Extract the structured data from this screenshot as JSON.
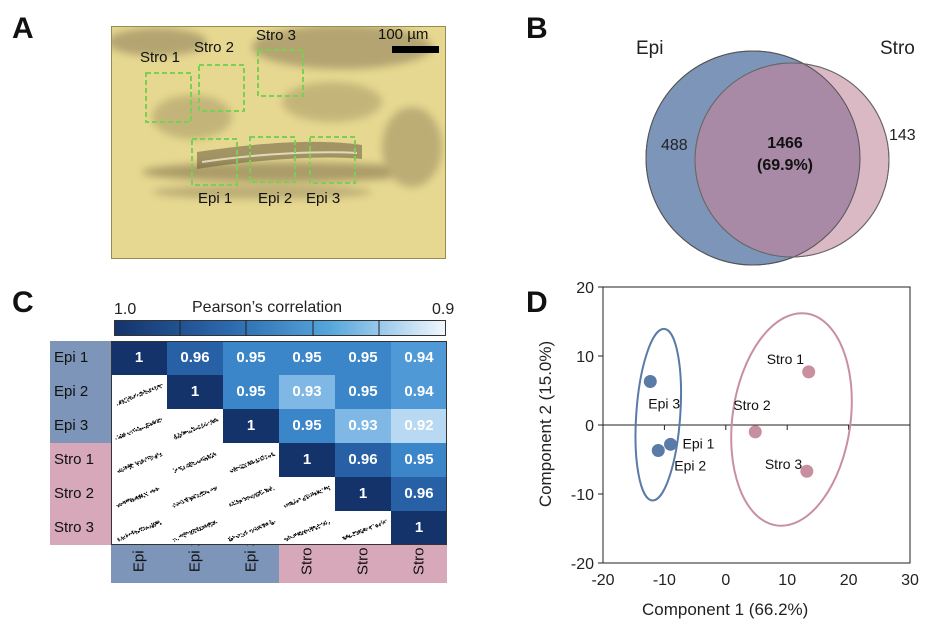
{
  "panels": {
    "a": "A",
    "b": "B",
    "c": "C",
    "d": "D"
  },
  "panel_a": {
    "scale_bar_label": "100 µm",
    "regions": [
      "Stro 1",
      "Stro 2",
      "Stro 3",
      "Epi 1",
      "Epi 2",
      "Epi 3"
    ],
    "roi_color": "#7ccf55"
  },
  "panel_b": {
    "set1_label": "Epi",
    "set2_label": "Stro",
    "set1_only": "488",
    "set2_only": "143",
    "overlap_count": "1466",
    "overlap_percent": "(69.9%)",
    "colors": {
      "epi": "#7d95b8",
      "stro": "#dab8c4",
      "overlap": "#a98aa6"
    }
  },
  "panel_c": {
    "colorbar_title": "Pearson’s correlation",
    "colorbar_max": "1.0",
    "colorbar_min": "0.9",
    "samples": [
      "Epi 1",
      "Epi 2",
      "Epi 3",
      "Stro 1",
      "Stro 2",
      "Stro 3"
    ],
    "matrix": [
      [
        "1",
        "0.96",
        "0.95",
        "0.95",
        "0.95",
        "0.94"
      ],
      [
        "",
        "1",
        "0.95",
        "0.93",
        "0.95",
        "0.94"
      ],
      [
        "",
        "",
        "1",
        "0.95",
        "0.93",
        "0.92"
      ],
      [
        "",
        "",
        "",
        "1",
        "0.96",
        "0.95"
      ],
      [
        "",
        "",
        "",
        "",
        "1",
        "0.96"
      ],
      [
        "",
        "",
        "",
        "",
        "",
        "1"
      ]
    ],
    "label_colors": {
      "epi": "#7d95b8",
      "stro": "#d6a8ba"
    }
  },
  "chart_data": {
    "type": "scatter",
    "xlabel": "Component 1 (66.2%)",
    "ylabel": "Component 2 (15.0%)",
    "xlim": [
      -20,
      30
    ],
    "ylim": [
      -20,
      20
    ],
    "xticks": [
      "-20",
      "-10",
      "0",
      "10",
      "20",
      "30"
    ],
    "yticks": [
      "20",
      "10",
      "0",
      "-10",
      "-20"
    ],
    "series": [
      {
        "color": "#5a7aa8",
        "points": [
          {
            "label": "Epi 1",
            "x": -9,
            "y": -2.8
          },
          {
            "label": "Epi 2",
            "x": -11,
            "y": -3.7
          },
          {
            "label": "Epi 3",
            "x": -12.3,
            "y": 6.3
          }
        ]
      },
      {
        "color": "#c8909f",
        "points": [
          {
            "label": "Stro 1",
            "x": 13.5,
            "y": 7.7
          },
          {
            "label": "Stro 2",
            "x": 4.8,
            "y": -1
          },
          {
            "label": "Stro 3",
            "x": 13.2,
            "y": -6.7
          }
        ]
      }
    ]
  }
}
